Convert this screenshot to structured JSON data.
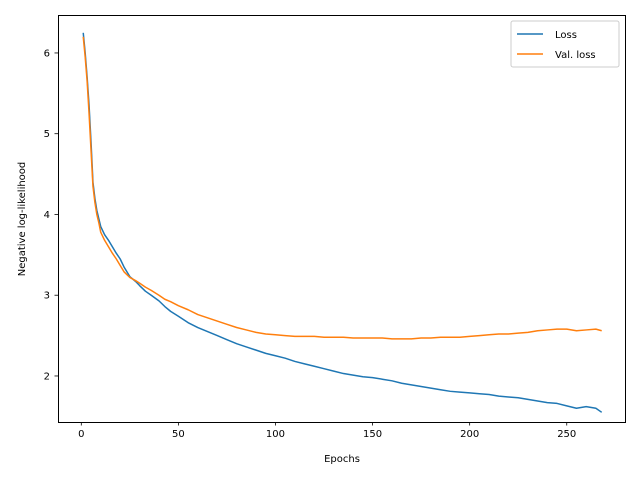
{
  "chart_data": {
    "type": "line",
    "title": "",
    "xlabel": "Epochs",
    "ylabel": "Negative log-likelihood",
    "xlim": [
      -12,
      280
    ],
    "ylim": [
      1.43,
      6.47
    ],
    "xticks": [
      0,
      50,
      100,
      150,
      200,
      250
    ],
    "yticks": [
      2,
      3,
      4,
      5,
      6
    ],
    "grid": false,
    "legend_position": "top-right",
    "series": [
      {
        "name": "Loss",
        "color": "#1f77b4",
        "x": [
          1,
          2,
          3,
          4,
          5,
          6,
          7,
          8,
          9,
          10,
          12,
          14,
          16,
          18,
          20,
          22,
          25,
          28,
          30,
          33,
          36,
          40,
          43,
          46,
          50,
          55,
          60,
          65,
          70,
          75,
          80,
          85,
          90,
          95,
          100,
          105,
          110,
          115,
          120,
          125,
          130,
          135,
          140,
          145,
          150,
          155,
          160,
          165,
          170,
          175,
          180,
          185,
          190,
          195,
          200,
          205,
          210,
          215,
          220,
          225,
          230,
          235,
          240,
          245,
          250,
          255,
          260,
          265,
          268
        ],
        "values": [
          6.25,
          6.0,
          5.7,
          5.35,
          4.9,
          4.4,
          4.2,
          4.05,
          3.95,
          3.85,
          3.75,
          3.68,
          3.6,
          3.52,
          3.45,
          3.35,
          3.23,
          3.17,
          3.12,
          3.05,
          3.0,
          2.93,
          2.86,
          2.8,
          2.74,
          2.66,
          2.6,
          2.55,
          2.5,
          2.45,
          2.4,
          2.36,
          2.32,
          2.28,
          2.25,
          2.22,
          2.18,
          2.15,
          2.12,
          2.09,
          2.06,
          2.03,
          2.01,
          1.99,
          1.98,
          1.96,
          1.94,
          1.91,
          1.89,
          1.87,
          1.85,
          1.83,
          1.81,
          1.8,
          1.79,
          1.78,
          1.77,
          1.75,
          1.74,
          1.73,
          1.71,
          1.69,
          1.67,
          1.66,
          1.63,
          1.6,
          1.62,
          1.6,
          1.55
        ]
      },
      {
        "name": "Val. loss",
        "color": "#ff7f0e",
        "x": [
          1,
          2,
          3,
          4,
          5,
          6,
          7,
          8,
          9,
          10,
          12,
          14,
          16,
          18,
          20,
          22,
          25,
          28,
          30,
          33,
          36,
          40,
          43,
          46,
          50,
          55,
          60,
          65,
          70,
          75,
          80,
          85,
          90,
          95,
          100,
          105,
          110,
          115,
          120,
          125,
          130,
          135,
          140,
          145,
          150,
          155,
          160,
          165,
          170,
          175,
          180,
          185,
          190,
          195,
          200,
          205,
          210,
          215,
          220,
          225,
          230,
          235,
          240,
          245,
          250,
          255,
          260,
          265,
          268
        ],
        "values": [
          6.2,
          5.95,
          5.65,
          5.25,
          4.8,
          4.35,
          4.15,
          4.0,
          3.9,
          3.78,
          3.68,
          3.6,
          3.52,
          3.45,
          3.37,
          3.29,
          3.22,
          3.18,
          3.15,
          3.1,
          3.06,
          3.0,
          2.95,
          2.92,
          2.87,
          2.82,
          2.76,
          2.72,
          2.68,
          2.64,
          2.6,
          2.57,
          2.54,
          2.52,
          2.51,
          2.5,
          2.49,
          2.49,
          2.49,
          2.48,
          2.48,
          2.48,
          2.47,
          2.47,
          2.47,
          2.47,
          2.46,
          2.46,
          2.46,
          2.47,
          2.47,
          2.48,
          2.48,
          2.48,
          2.49,
          2.5,
          2.51,
          2.52,
          2.52,
          2.53,
          2.54,
          2.56,
          2.57,
          2.58,
          2.58,
          2.56,
          2.57,
          2.58,
          2.56
        ]
      }
    ]
  }
}
